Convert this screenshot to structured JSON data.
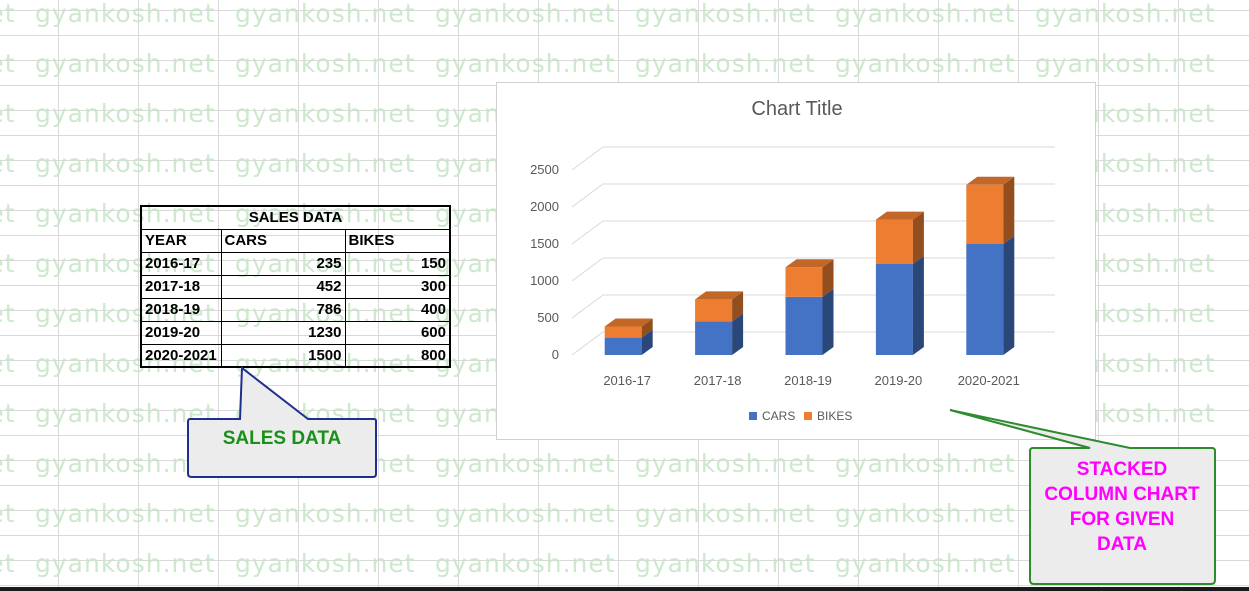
{
  "watermark": {
    "text": "gyankosh.net"
  },
  "table": {
    "title": "SALES DATA",
    "headers": [
      "YEAR",
      "CARS",
      "BIKES"
    ],
    "rows": [
      [
        "2016-17",
        "235",
        "150"
      ],
      [
        "2017-18",
        "452",
        "300"
      ],
      [
        "2018-19",
        "786",
        "400"
      ],
      [
        "2019-20",
        "1230",
        "600"
      ],
      [
        "2020-2021",
        "1500",
        "800"
      ]
    ]
  },
  "chart_data": {
    "type": "bar",
    "stacked": true,
    "three_d": true,
    "title": "Chart Title",
    "categories": [
      "2016-17",
      "2017-18",
      "2018-19",
      "2019-20",
      "2020-2021"
    ],
    "series": [
      {
        "name": "CARS",
        "values": [
          235,
          452,
          786,
          1230,
          1500
        ],
        "color": "#4472C4"
      },
      {
        "name": "BIKES",
        "values": [
          150,
          300,
          400,
          600,
          800
        ],
        "color": "#ED7D31"
      }
    ],
    "ylim": [
      0,
      2500
    ],
    "yticks": [
      0,
      500,
      1000,
      1500,
      2000,
      2500
    ],
    "grid": true,
    "legend": "bottom"
  },
  "callouts": {
    "sales": {
      "text": "SALES DATA",
      "color": "#1a8f1a",
      "border": "#1f2f8f"
    },
    "chart": {
      "lines": [
        "STACKED",
        "COLUMN CHART",
        "FOR GIVEN",
        "DATA"
      ],
      "color": "#ff00ff",
      "border": "#2e8b2e"
    }
  }
}
